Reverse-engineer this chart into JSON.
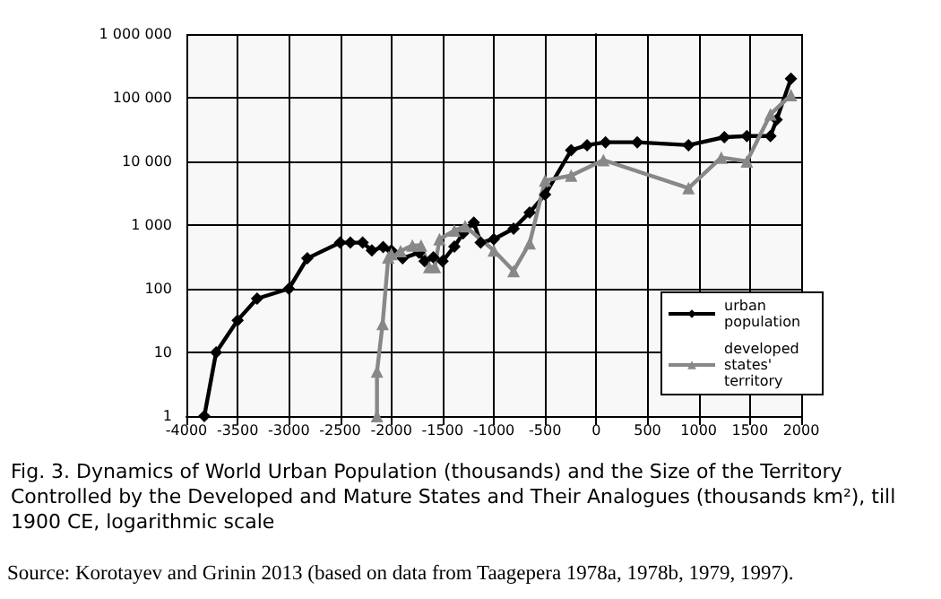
{
  "chart_data": {
    "type": "line",
    "title": "Fig. 3. Dynamics of World Urban Population (thousands) and the Size of the Territory Controlled by the Developed and Mature States and Their Analogues (thousands km²), till 1900 CE, logarithmic scale",
    "annotations": [
      "Source: Korotayev and Grinin 2013 (based on data from Taagepera 1978a, 1978b, 1979, 1997)."
    ],
    "series": [
      {
        "name": "urban population",
        "color": "#000000",
        "marker": "diamond",
        "x": [
          -3825,
          -3710,
          -3500,
          -3310,
          -3000,
          -2820,
          -2500,
          -2400,
          -2280,
          -2190,
          -2080,
          -2000,
          -1890,
          -1730,
          -1675,
          -1590,
          -1500,
          -1385,
          -1300,
          -1195,
          -1128,
          -1000,
          -807,
          -650,
          -500,
          -245,
          -90,
          90,
          400,
          900,
          1250,
          1470,
          1700,
          1760,
          1900
        ],
        "values": [
          1,
          10,
          32,
          70,
          100,
          300,
          530,
          530,
          530,
          400,
          450,
          400,
          300,
          370,
          270,
          310,
          270,
          460,
          740,
          1090,
          530,
          600,
          880,
          1580,
          3000,
          15000,
          18000,
          20000,
          20000,
          18000,
          24000,
          25000,
          25000,
          45000,
          200000
        ]
      },
      {
        "name": "developed states' territory",
        "color": "#888888",
        "marker": "triangle",
        "x": [
          -2140,
          -2140,
          -2085,
          -2030,
          -2000,
          -1910,
          -1795,
          -1710,
          -1630,
          -1575,
          -1530,
          -1385,
          -1280,
          -1000,
          -807,
          -650,
          -500,
          -245,
          70,
          900,
          1220,
          1470,
          1700,
          1900
        ],
        "values": [
          1,
          5,
          28,
          310,
          350,
          390,
          480,
          480,
          220,
          220,
          600,
          820,
          960,
          400,
          190,
          520,
          5000,
          6000,
          10500,
          3800,
          11500,
          10000,
          55000,
          110000
        ]
      }
    ],
    "xlim": [
      -4000,
      2000
    ],
    "xticks": [
      -4000,
      -3500,
      -3000,
      -2500,
      -2000,
      -1500,
      -1000,
      -500,
      0,
      500,
      1000,
      1500,
      2000
    ],
    "ylim": [
      1,
      1000000
    ],
    "yticks": [
      1,
      10,
      100,
      {
        "value": 1000,
        "label": "1 000"
      },
      {
        "value": 10000,
        "label": "10 000"
      },
      {
        "value": 100000,
        "label": "100 000"
      },
      {
        "value": 1000000,
        "label": "1 000 000"
      }
    ],
    "log": "y",
    "grid": true,
    "legend": "bottom right"
  }
}
